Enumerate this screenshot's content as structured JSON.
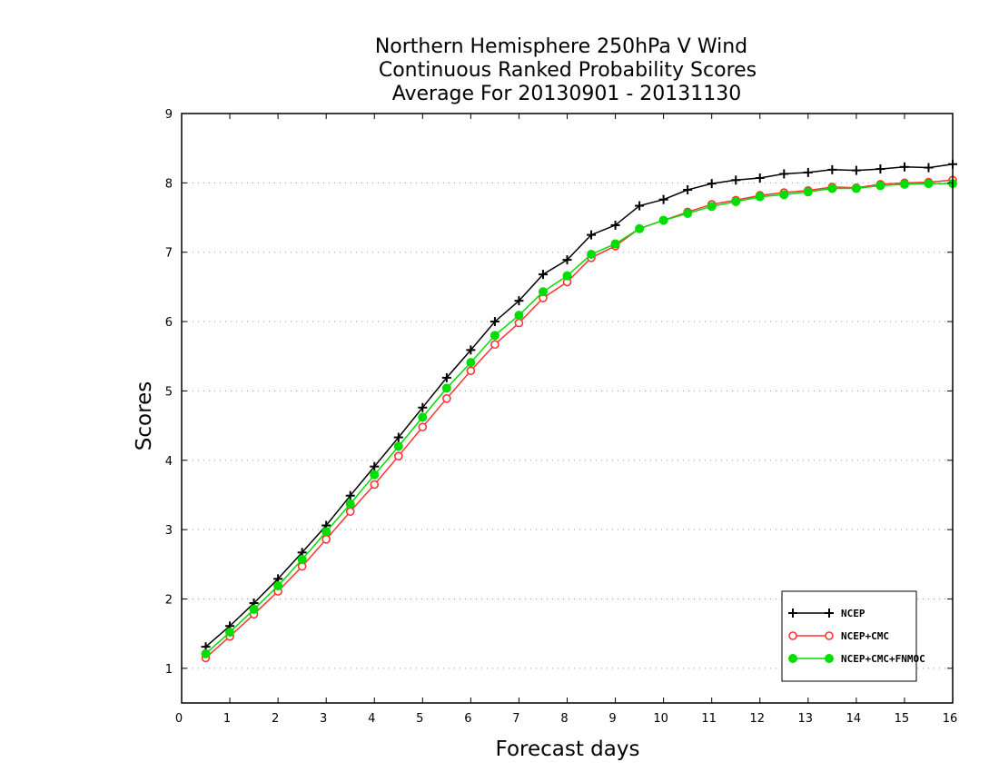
{
  "chart_data": {
    "type": "line",
    "title": [
      "Northern Hemisphere 250hPa V Wind",
      "Continuous Ranked Probability Scores",
      "Average For 20130901 - 20131130"
    ],
    "xlabel": "Forecast days",
    "ylabel": "Scores",
    "xlim": [
      0,
      16
    ],
    "ylim": [
      0.5,
      9
    ],
    "xticks": [
      "0",
      "1",
      "2",
      "3",
      "4",
      "5",
      "6",
      "7",
      "8",
      "9",
      "10",
      "11",
      "12",
      "13",
      "14",
      "15",
      "16"
    ],
    "yticks": [
      "1",
      "2",
      "3",
      "4",
      "5",
      "6",
      "7",
      "8",
      "9"
    ],
    "grid": "horizontal dotted",
    "legend_position": "bottom-right",
    "x": [
      0.5,
      1,
      1.5,
      2,
      2.5,
      3,
      3.5,
      4,
      4.5,
      5,
      5.5,
      6,
      6.5,
      7,
      7.5,
      8,
      8.5,
      9,
      9.5,
      10,
      10.5,
      11,
      11.5,
      12,
      12.5,
      13,
      13.5,
      14,
      14.5,
      15,
      15.5,
      16
    ],
    "series": [
      {
        "name": "NCEP",
        "color": "#000000",
        "marker": "plus",
        "values": [
          1.31,
          1.61,
          1.94,
          2.29,
          2.67,
          3.06,
          3.49,
          3.91,
          4.33,
          4.76,
          5.19,
          5.59,
          6.0,
          6.3,
          6.68,
          6.89,
          7.25,
          7.39,
          7.67,
          7.76,
          7.9,
          7.99,
          8.04,
          8.07,
          8.13,
          8.15,
          8.19,
          8.18,
          8.2,
          8.23,
          8.22,
          8.27
        ]
      },
      {
        "name": "NCEP+CMC",
        "color": "#ff3333",
        "marker": "open-circle",
        "values": [
          1.15,
          1.46,
          1.78,
          2.11,
          2.47,
          2.86,
          3.26,
          3.65,
          4.06,
          4.48,
          4.89,
          5.29,
          5.67,
          5.98,
          6.34,
          6.57,
          6.92,
          7.09,
          7.34,
          7.46,
          7.58,
          7.69,
          7.75,
          7.82,
          7.86,
          7.89,
          7.94,
          7.93,
          7.98,
          8.0,
          8.01,
          8.04
        ]
      },
      {
        "name": "NCEP+CMC+FNMOC",
        "color": "#00dd00",
        "marker": "filled-circle",
        "values": [
          1.21,
          1.52,
          1.85,
          2.19,
          2.57,
          2.97,
          3.37,
          3.79,
          4.2,
          4.62,
          5.04,
          5.41,
          5.8,
          6.09,
          6.43,
          6.66,
          6.97,
          7.12,
          7.34,
          7.46,
          7.56,
          7.66,
          7.73,
          7.8,
          7.83,
          7.87,
          7.92,
          7.92,
          7.96,
          7.98,
          7.99,
          7.99
        ]
      }
    ]
  }
}
